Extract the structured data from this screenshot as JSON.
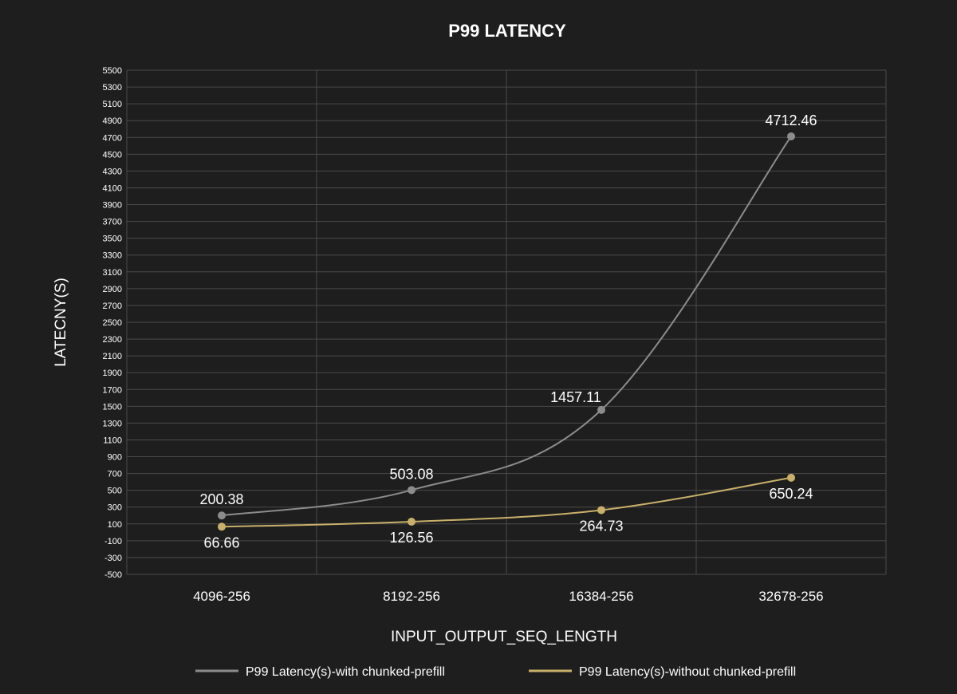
{
  "chart_data": {
    "type": "line",
    "title": "P99 LATENCY",
    "xlabel": "INPUT_OUTPUT_SEQ_LENGTH",
    "ylabel": "LATECNY(S)",
    "categories": [
      "4096-256",
      "8192-256",
      "16384-256",
      "32678-256"
    ],
    "ylim": [
      -500,
      5500
    ],
    "ytick_step": 200,
    "grid": true,
    "legend_position": "bottom",
    "series": [
      {
        "name": "P99 Latency(s)-with chunked-prefill",
        "values": [
          200.38,
          503.08,
          1457.11,
          4712.46
        ],
        "labels": [
          "200.38",
          "503.08",
          "1457.11",
          "4712.46"
        ],
        "color": "#8c8c8c"
      },
      {
        "name": "P99 Latency(s)-without chunked-prefill",
        "values": [
          66.66,
          126.56,
          264.73,
          650.24
        ],
        "labels": [
          "66.66",
          "126.56",
          "264.73",
          "650.24"
        ],
        "color": "#c9b06a"
      }
    ]
  },
  "colors": {
    "background": "#1e1e1e",
    "grid": "#4a4a4a",
    "text": "#ffffff"
  }
}
